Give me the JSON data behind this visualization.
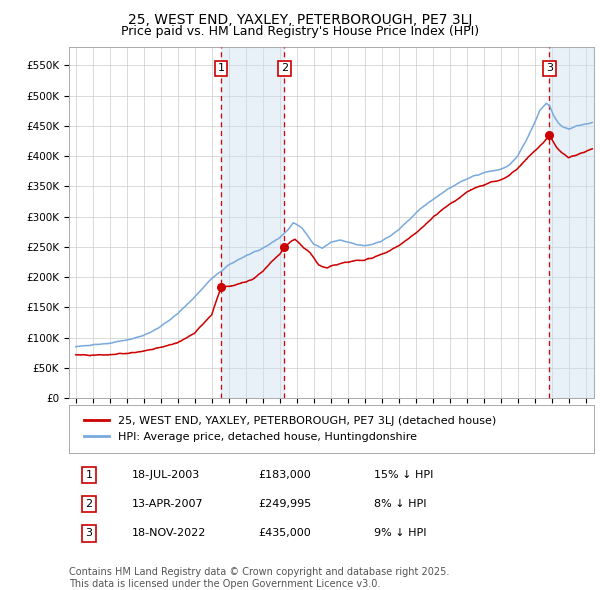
{
  "title": "25, WEST END, YAXLEY, PETERBOROUGH, PE7 3LJ",
  "subtitle": "Price paid vs. HM Land Registry's House Price Index (HPI)",
  "ylabel_ticks": [
    "£0",
    "£50K",
    "£100K",
    "£150K",
    "£200K",
    "£250K",
    "£300K",
    "£350K",
    "£400K",
    "£450K",
    "£500K",
    "£550K"
  ],
  "ytick_values": [
    0,
    50000,
    100000,
    150000,
    200000,
    250000,
    300000,
    350000,
    400000,
    450000,
    500000,
    550000
  ],
  "ylim": [
    0,
    580000
  ],
  "xlim_start": 1994.6,
  "xlim_end": 2025.5,
  "sale_dates": [
    2003.54,
    2007.28,
    2022.88
  ],
  "sale_prices": [
    183000,
    249995,
    435000
  ],
  "sale_labels": [
    "1",
    "2",
    "3"
  ],
  "sale_label_border_color": "#cc0000",
  "vline_color": "#dd0000",
  "vline_style": "--",
  "shade_color": "#cce0f0",
  "shade_alpha": 0.45,
  "hpi_line_color": "#7aaadd",
  "price_line_color": "#cc0000",
  "grid_color": "#cccccc",
  "bg_color": "white",
  "legend_entries": [
    "25, WEST END, YAXLEY, PETERBOROUGH, PE7 3LJ (detached house)",
    "HPI: Average price, detached house, Huntingdonshire"
  ],
  "legend_line_colors": [
    "#cc0000",
    "#7aaadd"
  ],
  "table_data": [
    [
      "1",
      "18-JUL-2003",
      "£183,000",
      "15% ↓ HPI"
    ],
    [
      "2",
      "13-APR-2007",
      "£249,995",
      "8% ↓ HPI"
    ],
    [
      "3",
      "18-NOV-2022",
      "£435,000",
      "9% ↓ HPI"
    ]
  ],
  "footer_text": "Contains HM Land Registry data © Crown copyright and database right 2025.\nThis data is licensed under the Open Government Licence v3.0.",
  "title_fontsize": 10,
  "subtitle_fontsize": 9,
  "tick_fontsize": 7.5,
  "legend_fontsize": 8,
  "table_fontsize": 8,
  "footer_fontsize": 7
}
